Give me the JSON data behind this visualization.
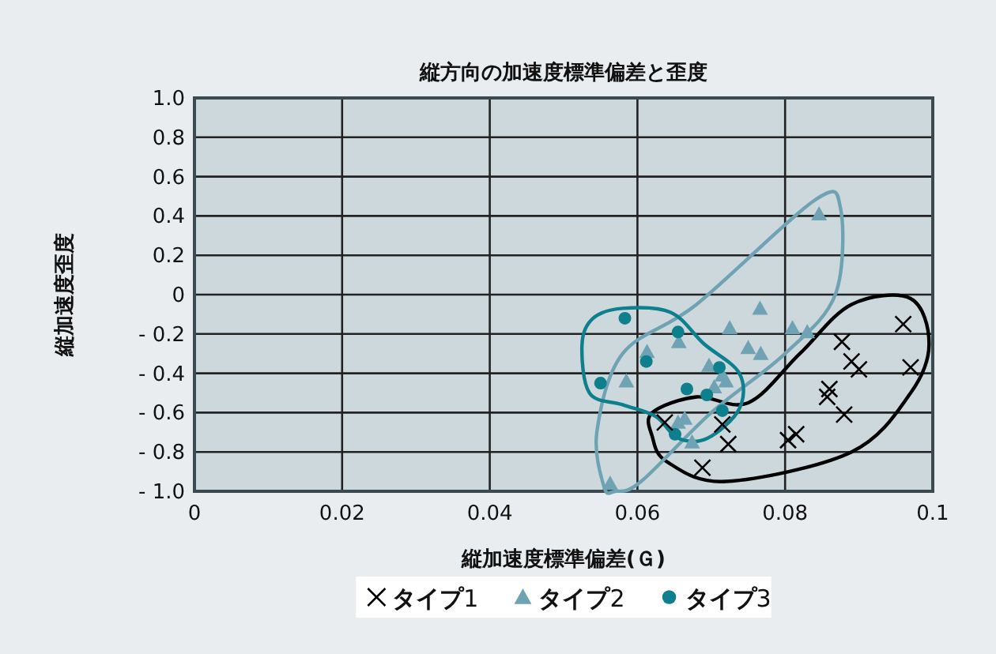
{
  "chart_data": {
    "type": "scatter",
    "title": "縦方向の加速度標準偏差と歪度",
    "xlabel": "縦加速度標準偏差(Ｇ)",
    "ylabel": "縦加速度歪度",
    "xlim": [
      0,
      0.1
    ],
    "xticks": [
      0,
      0.02,
      0.04,
      0.06,
      0.08,
      0.1
    ],
    "ylim": [
      -1,
      1
    ],
    "yticks": [
      {
        "value": 1,
        "label": "1.0"
      },
      {
        "value": 0.8,
        "label": "0.8"
      },
      {
        "value": 0.6,
        "label": "0.6"
      },
      {
        "value": 0.4,
        "label": "0.4"
      },
      {
        "value": 0.2,
        "label": "0.2"
      },
      0,
      {
        "value": -0.2,
        "label": "- 0.2"
      },
      {
        "value": -0.4,
        "label": "- 0.4"
      },
      {
        "value": -0.6,
        "label": "- 0.6"
      },
      {
        "value": -0.8,
        "label": "- 0.8"
      },
      {
        "value": -1,
        "label": "- 1.0"
      }
    ],
    "grid": true,
    "legend": "bottom",
    "series": [
      {
        "name": "**タイプ**1",
        "color": "#000000",
        "marker": "cross",
        "x": [
          0.096,
          0.0877,
          0.089,
          0.09,
          0.097,
          0.086,
          0.0857,
          0.088,
          0.0815,
          0.0804,
          0.0723,
          0.0688,
          0.0637,
          0.0715
        ],
        "values": [
          -0.15,
          -0.24,
          -0.34,
          -0.38,
          -0.37,
          -0.48,
          -0.52,
          -0.61,
          -0.71,
          -0.74,
          -0.76,
          -0.88,
          -0.65,
          -0.66
        ]
      },
      {
        "name": "**タイプ**2",
        "color": "#6fa3b3",
        "marker": "triangle",
        "x": [
          0.0846,
          0.0766,
          0.0725,
          0.081,
          0.083,
          0.075,
          0.0767,
          0.0656,
          0.0613,
          0.0697,
          0.0715,
          0.072,
          0.0704,
          0.0664,
          0.0655,
          0.0674,
          0.0585,
          0.0563
        ],
        "values": [
          0.41,
          -0.07,
          -0.17,
          -0.17,
          -0.19,
          -0.27,
          -0.3,
          -0.24,
          -0.29,
          -0.36,
          -0.41,
          -0.44,
          -0.47,
          -0.63,
          -0.65,
          -0.75,
          -0.44,
          -0.96
        ]
      },
      {
        "name": "**タイプ**3",
        "color": "#0e7f8c",
        "marker": "circle",
        "x": [
          0.0655,
          0.0612,
          0.0711,
          0.0667,
          0.0694,
          0.0715,
          0.0651,
          0.0583,
          0.055
        ],
        "values": [
          -0.19,
          -0.34,
          -0.37,
          -0.48,
          -0.51,
          -0.59,
          -0.71,
          -0.12,
          -0.45
        ]
      }
    ]
  }
}
